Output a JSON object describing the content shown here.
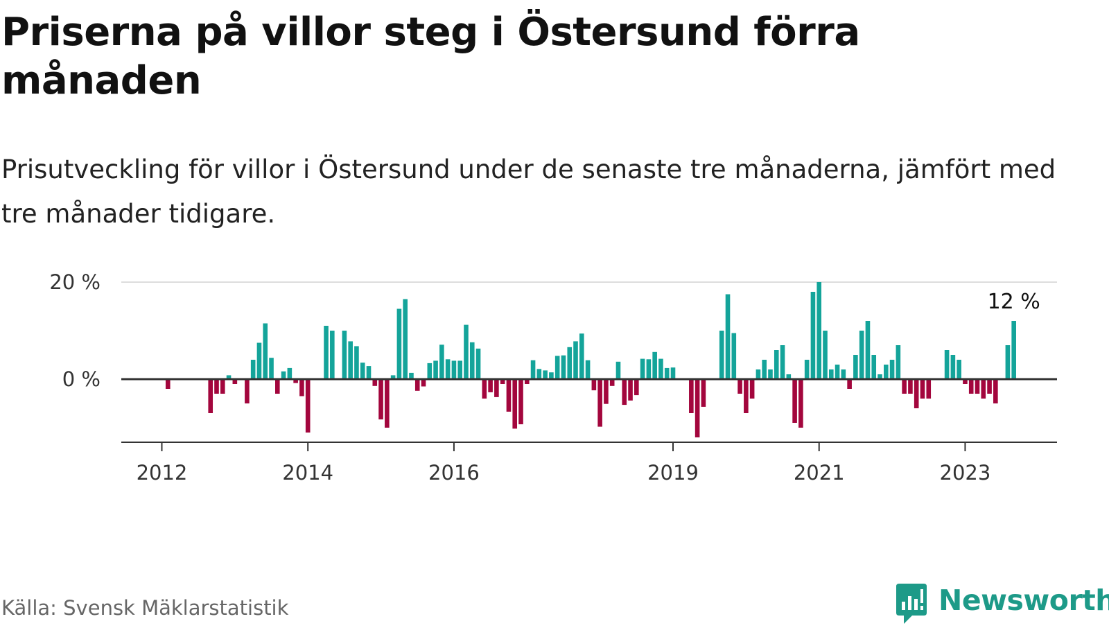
{
  "title": "Priserna på villor steg i Östersund förra månaden",
  "subtitle": "Prisutveckling för villor i Östersund under de senaste tre månaderna, jämfört med tre månader tidigare.",
  "source": "Källa: Svensk Mäklarstatistik",
  "brand": "Newsworthy",
  "colors": {
    "positive": "#14a49a",
    "negative": "#a3063d",
    "grid": "#dddddd",
    "axis": "#333333",
    "brand": "#1d9a88"
  },
  "chart_data": {
    "type": "bar",
    "ylim": [
      -13,
      20
    ],
    "y_ticks": [
      {
        "value": 20,
        "label": "20 %"
      },
      {
        "value": 0,
        "label": "0 %"
      }
    ],
    "x_ticks": [
      {
        "value": 6,
        "label": "2012"
      },
      {
        "value": 30,
        "label": "2014"
      },
      {
        "value": 54,
        "label": "2016"
      },
      {
        "value": 90,
        "label": "2019"
      },
      {
        "value": 114,
        "label": "2021"
      },
      {
        "value": 138,
        "label": "2023"
      }
    ],
    "x_range": [
      -1,
      149
    ],
    "last_label": "12 %",
    "values": [
      0,
      0,
      0,
      0,
      0,
      0,
      0,
      -2,
      0,
      0,
      0,
      0,
      0,
      0,
      -7,
      -3,
      -3,
      0.8,
      -1,
      0,
      -5,
      4,
      7.5,
      11.5,
      4.4,
      -3,
      1.6,
      2.3,
      -0.8,
      -3.5,
      -11,
      0,
      0,
      11,
      10,
      0,
      10,
      7.8,
      6.8,
      3.4,
      2.7,
      -1.4,
      -8.3,
      -10,
      0.8,
      14.5,
      16.5,
      1.3,
      -2.4,
      -1.5,
      3.3,
      3.8,
      7.1,
      4.1,
      3.8,
      3.8,
      11.2,
      7.6,
      6.3,
      -4,
      -2.7,
      -3.7,
      -1,
      -6.7,
      -10.2,
      -9.3,
      -1,
      3.9,
      2.1,
      1.8,
      1.4,
      4.8,
      4.9,
      6.6,
      7.8,
      9.4,
      3.9,
      -2.3,
      -9.8,
      -5.1,
      -1.4,
      3.6,
      -5.3,
      -4.4,
      -3.3,
      4.2,
      4.1,
      5.6,
      4.2,
      2.3,
      2.4,
      0,
      0,
      -7,
      -12,
      -5.7,
      0,
      0,
      10,
      17.5,
      9.5,
      -3,
      -7,
      -4,
      2,
      4,
      2,
      6,
      7,
      1,
      -9,
      -10,
      4,
      18,
      20,
      10,
      2,
      3,
      2,
      -2,
      5,
      10,
      12,
      5,
      1,
      3,
      4,
      7,
      -3,
      -3,
      -6,
      -4,
      -4,
      0,
      0,
      6,
      5,
      4,
      -1,
      -3,
      -3,
      -4,
      -3,
      -5,
      0,
      7,
      12
    ]
  }
}
